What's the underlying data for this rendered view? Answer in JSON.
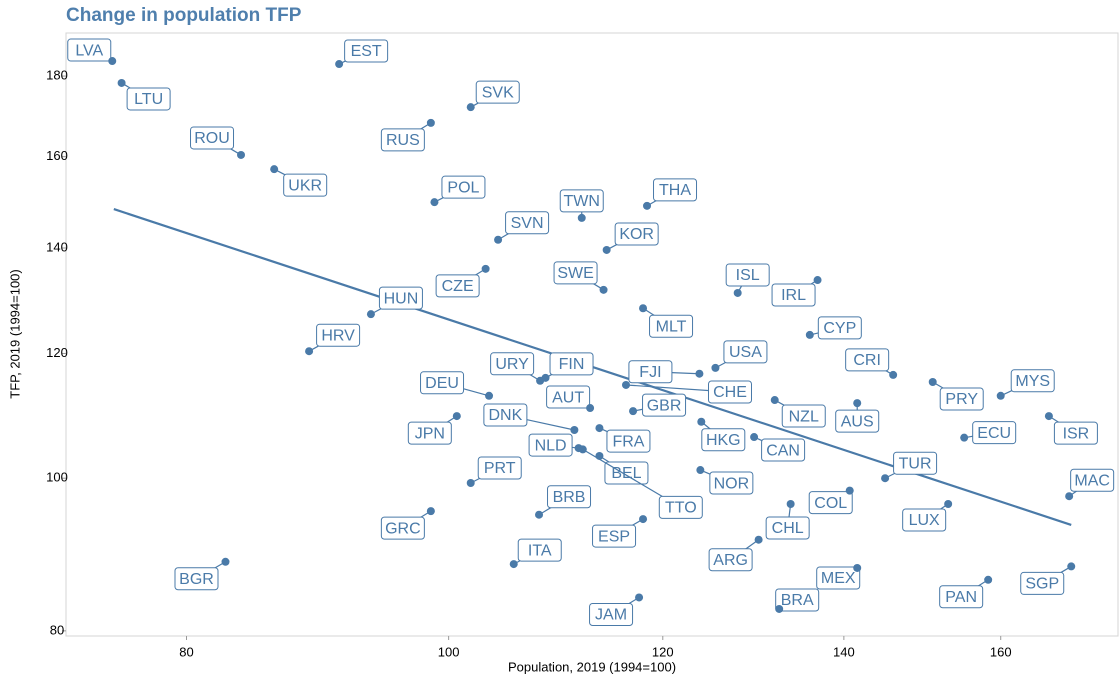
{
  "chart_data": {
    "type": "scatter",
    "title": "Change in population TFP",
    "x_label": "Population, 2019 (1994=100)",
    "y_label": "TFP, 2019 (1994=100)",
    "xscale": "log",
    "yscale": "log",
    "xlim": [
      72.2,
      176.8
    ],
    "ylim": [
      79.4,
      191.7
    ],
    "xticks": [
      80,
      100,
      120,
      140,
      160
    ],
    "yticks": [
      80,
      100,
      120,
      140,
      160,
      180
    ],
    "color": "#4a7aa8",
    "labels": [
      "LVA",
      "LTU",
      "EST",
      "SVK",
      "RUS",
      "ROU",
      "UKR",
      "POL",
      "TWN",
      "THA",
      "SVN",
      "KOR",
      "CZE",
      "SWE",
      "ISL",
      "IRL",
      "MLT",
      "HUN",
      "CYP",
      "HRV",
      "USA",
      "FJI",
      "CRI",
      "URY",
      "FIN",
      "PRY",
      "CHE",
      "DEU",
      "MYS",
      "NZL",
      "AUS",
      "AUT",
      "GBR",
      "ISR",
      "JPN",
      "DNK",
      "HKG",
      "FRA",
      "CAN",
      "ECU",
      "NLD",
      "BEL",
      "NOR",
      "TUR",
      "PRT",
      "COL",
      "MAC",
      "BRB",
      "GRC",
      "CHL",
      "LUX",
      "TTO",
      "ESP",
      "ARG",
      "ITA",
      "BGR",
      "MEX",
      "SGP",
      "PAN",
      "JAM",
      "BRA"
    ],
    "x": [
      75.1,
      75.7,
      91.1,
      101.9,
      98.5,
      83.8,
      86.2,
      98.8,
      112.0,
      118.4,
      104.3,
      114.4,
      103.2,
      114.1,
      127.9,
      136.9,
      118.0,
      93.6,
      136.0,
      88.8,
      125.5,
      123.8,
      146.0,
      108.1,
      108.6,
      151.0,
      116.3,
      103.5,
      160.0,
      132.0,
      141.6,
      112.8,
      117.0,
      166.7,
      100.7,
      111.3,
      124.0,
      113.7,
      129.7,
      155.1,
      111.7,
      113.7,
      123.9,
      145.0,
      101.9,
      140.7,
      169.6,
      108.0,
      98.5,
      133.8,
      153.0,
      112.1,
      118.0,
      130.2,
      105.7,
      82.7,
      141.6,
      169.9,
      158.3,
      117.6,
      132.5
    ],
    "y": [
      184.0,
      178.2,
      183.2,
      172.0,
      168.1,
      160.4,
      157.1,
      149.7,
      146.3,
      148.9,
      141.7,
      139.6,
      135.8,
      131.7,
      131.1,
      133.6,
      128.2,
      127.1,
      123.3,
      120.4,
      117.5,
      116.5,
      116.3,
      115.3,
      115.8,
      115.1,
      114.6,
      112.8,
      112.8,
      112.1,
      111.6,
      110.8,
      110.3,
      109.5,
      109.5,
      107.3,
      108.6,
      107.6,
      106.2,
      106.1,
      104.5,
      103.3,
      101.2,
      100.0,
      99.3,
      98.2,
      97.4,
      94.8,
      95.3,
      96.3,
      96.3,
      104.3,
      94.2,
      91.4,
      88.2,
      88.5,
      87.7,
      87.9,
      86.2,
      84.0,
      82.6
    ],
    "trend": {
      "x": [
        75.2,
        169.9
      ],
      "y": [
        148.2,
        93.4
      ],
      "color": "#4a7aa8"
    }
  }
}
